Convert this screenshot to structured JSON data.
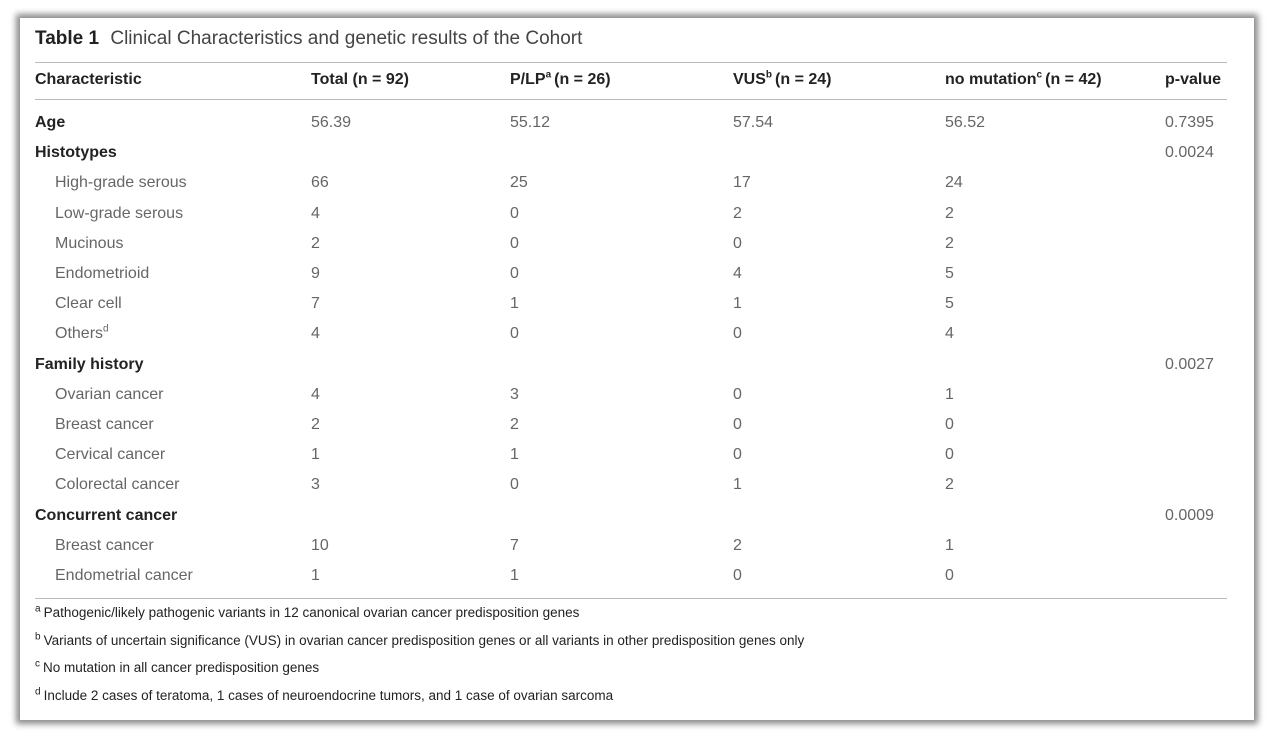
{
  "table": {
    "label": "Table 1",
    "caption": "Clinical Characteristics and genetic results of the Cohort",
    "columns": [
      {
        "pre": "Characteristic",
        "sup": "",
        "n": ""
      },
      {
        "pre": "Total (",
        "sup": "",
        "n": "n = 92)"
      },
      {
        "pre": "P/LP",
        "sup": "a",
        "n": "(n = 26)"
      },
      {
        "pre": "VUS",
        "sup": "b",
        "n": "(n = 24)"
      },
      {
        "pre": "no mutation",
        "sup": "c",
        "n": "(n = 42)"
      },
      {
        "pre": "",
        "sup": "",
        "n": "p-value"
      }
    ],
    "rows": [
      {
        "type": "head",
        "label": "Age",
        "sup": "",
        "values": [
          "56.39",
          "55.12",
          "57.54",
          "56.52",
          "0.7395"
        ]
      },
      {
        "type": "head",
        "label": "Histotypes",
        "sup": "",
        "values": [
          "",
          "",
          "",
          "",
          "0.0024"
        ]
      },
      {
        "type": "sub",
        "label": "High-grade serous",
        "sup": "",
        "values": [
          "66",
          "25",
          "17",
          "24",
          ""
        ]
      },
      {
        "type": "sub",
        "label": "Low-grade serous",
        "sup": "",
        "values": [
          "4",
          "0",
          "2",
          "2",
          ""
        ]
      },
      {
        "type": "sub",
        "label": "Mucinous",
        "sup": "",
        "values": [
          "2",
          "0",
          "0",
          "2",
          ""
        ]
      },
      {
        "type": "sub",
        "label": "Endometrioid",
        "sup": "",
        "values": [
          "9",
          "0",
          "4",
          "5",
          ""
        ]
      },
      {
        "type": "sub",
        "label": "Clear cell",
        "sup": "",
        "values": [
          "7",
          "1",
          "1",
          "5",
          ""
        ]
      },
      {
        "type": "sub",
        "label": "Others",
        "sup": "d",
        "values": [
          "4",
          "0",
          "0",
          "4",
          ""
        ]
      },
      {
        "type": "head",
        "label": "Family history",
        "sup": "",
        "values": [
          "",
          "",
          "",
          "",
          "0.0027"
        ]
      },
      {
        "type": "sub",
        "label": "Ovarian cancer",
        "sup": "",
        "values": [
          "4",
          "3",
          "0",
          "1",
          ""
        ]
      },
      {
        "type": "sub",
        "label": "Breast cancer",
        "sup": "",
        "values": [
          "2",
          "2",
          "0",
          "0",
          ""
        ]
      },
      {
        "type": "sub",
        "label": "Cervical cancer",
        "sup": "",
        "values": [
          "1",
          "1",
          "0",
          "0",
          ""
        ]
      },
      {
        "type": "sub",
        "label": "Colorectal cancer",
        "sup": "",
        "values": [
          "3",
          "0",
          "1",
          "2",
          ""
        ]
      },
      {
        "type": "head",
        "label": "Concurrent cancer",
        "sup": "",
        "values": [
          "",
          "",
          "",
          "",
          "0.0009"
        ]
      },
      {
        "type": "sub",
        "label": "Breast cancer",
        "sup": "",
        "values": [
          "10",
          "7",
          "2",
          "1",
          ""
        ]
      },
      {
        "type": "sub",
        "label": "Endometrial cancer",
        "sup": "",
        "values": [
          "1",
          "1",
          "0",
          "0",
          ""
        ]
      }
    ],
    "footnotes": [
      {
        "mark": "a",
        "text": "Pathogenic/likely pathogenic variants in 12 canonical ovarian cancer predisposition genes"
      },
      {
        "mark": "b",
        "text": "Variants of uncertain significance (VUS) in ovarian cancer predisposition genes or all variants in other predisposition genes only"
      },
      {
        "mark": "c",
        "text": "No mutation in all cancer predisposition genes"
      },
      {
        "mark": "d",
        "text": "Include 2 cases of teratoma, 1 cases of neuroendocrine tumors, and 1 case of ovarian sarcoma"
      }
    ]
  }
}
